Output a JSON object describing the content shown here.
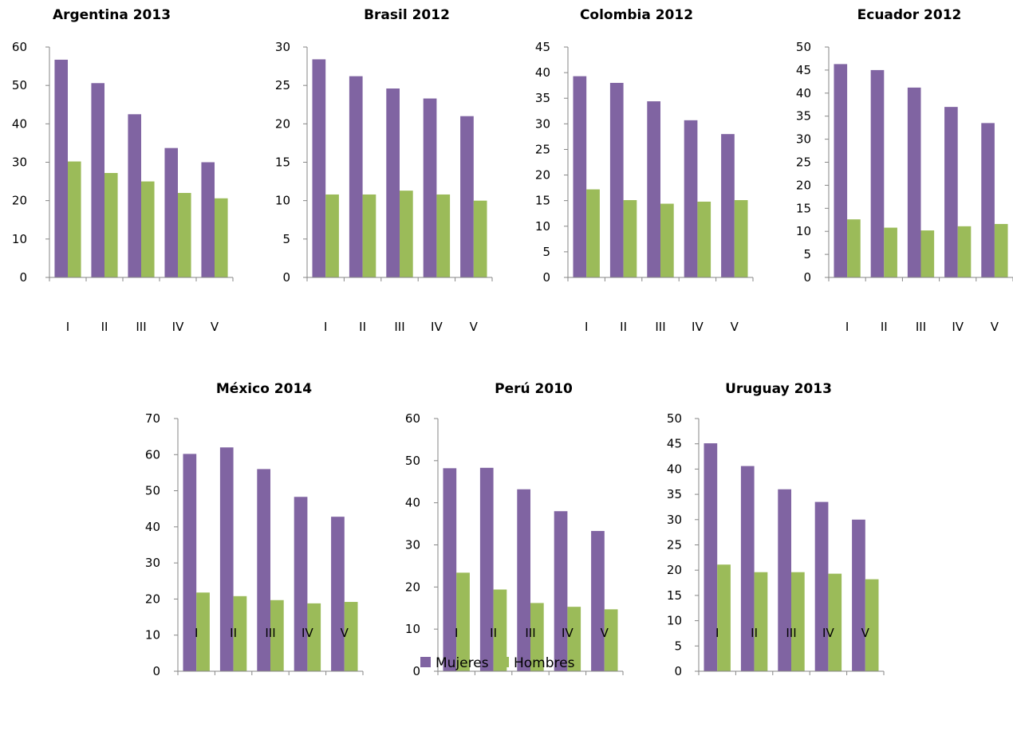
{
  "legend": [
    {
      "name": "Mujeres",
      "color": "#8064A2"
    },
    {
      "name": "Hombres",
      "color": "#9BBB59"
    }
  ],
  "chart_data": [
    {
      "type": "bar",
      "title": "Argentina 2013",
      "categories": [
        "I",
        "II",
        "III",
        "IV",
        "V"
      ],
      "ylim": [
        0,
        60
      ],
      "yticks": [
        0,
        10,
        20,
        30,
        40,
        50,
        60
      ],
      "series": [
        {
          "name": "Mujeres",
          "values": [
            56.7,
            50.6,
            42.5,
            33.7,
            30.0
          ]
        },
        {
          "name": "Hombres",
          "values": [
            30.2,
            27.2,
            25.0,
            22.0,
            20.6
          ]
        }
      ]
    },
    {
      "type": "bar",
      "title": "Brasil 2012",
      "categories": [
        "I",
        "II",
        "III",
        "IV",
        "V"
      ],
      "ylim": [
        0,
        30
      ],
      "yticks": [
        0,
        5,
        10,
        15,
        20,
        25,
        30
      ],
      "series": [
        {
          "name": "Mujeres",
          "values": [
            28.4,
            26.2,
            24.6,
            23.3,
            21.0
          ]
        },
        {
          "name": "Hombres",
          "values": [
            10.8,
            10.8,
            11.3,
            10.8,
            10.0
          ]
        }
      ]
    },
    {
      "type": "bar",
      "title": "Colombia 2012",
      "categories": [
        "I",
        "II",
        "III",
        "IV",
        "V"
      ],
      "ylim": [
        0,
        45
      ],
      "yticks": [
        0,
        5,
        10,
        15,
        20,
        25,
        30,
        35,
        40,
        45
      ],
      "series": [
        {
          "name": "Mujeres",
          "values": [
            39.3,
            38.0,
            34.4,
            30.7,
            28.0
          ]
        },
        {
          "name": "Hombres",
          "values": [
            17.2,
            15.1,
            14.4,
            14.8,
            15.1
          ]
        }
      ]
    },
    {
      "type": "bar",
      "title": "Ecuador 2012",
      "categories": [
        "I",
        "II",
        "III",
        "IV",
        "V"
      ],
      "ylim": [
        0,
        50
      ],
      "yticks": [
        0,
        5,
        10,
        15,
        20,
        25,
        30,
        35,
        40,
        45,
        50
      ],
      "series": [
        {
          "name": "Mujeres",
          "values": [
            46.3,
            45.0,
            41.2,
            37.0,
            33.5
          ]
        },
        {
          "name": "Hombres",
          "values": [
            12.6,
            10.8,
            10.2,
            11.1,
            11.6
          ]
        }
      ]
    },
    {
      "type": "bar",
      "title": "México 2014",
      "categories": [
        "I",
        "II",
        "III",
        "IV",
        "V"
      ],
      "ylim": [
        0,
        70
      ],
      "yticks": [
        0,
        10,
        20,
        30,
        40,
        50,
        60,
        70
      ],
      "series": [
        {
          "name": "Mujeres",
          "values": [
            60.2,
            62.0,
            56.0,
            48.3,
            42.8
          ]
        },
        {
          "name": "Hombres",
          "values": [
            21.8,
            20.8,
            19.7,
            18.8,
            19.2
          ]
        }
      ]
    },
    {
      "type": "bar",
      "title": "Perú 2010",
      "categories": [
        "I",
        "II",
        "III",
        "IV",
        "V"
      ],
      "ylim": [
        0,
        60
      ],
      "yticks": [
        0,
        10,
        20,
        30,
        40,
        50,
        60
      ],
      "series": [
        {
          "name": "Mujeres",
          "values": [
            48.2,
            48.3,
            43.2,
            38.0,
            33.3
          ]
        },
        {
          "name": "Hombres",
          "values": [
            23.4,
            19.4,
            16.2,
            15.3,
            14.7
          ]
        }
      ]
    },
    {
      "type": "bar",
      "title": "Uruguay 2013",
      "categories": [
        "I",
        "II",
        "III",
        "IV",
        "V"
      ],
      "ylim": [
        0,
        50
      ],
      "yticks": [
        0,
        5,
        10,
        15,
        20,
        25,
        30,
        35,
        40,
        45,
        50
      ],
      "series": [
        {
          "name": "Mujeres",
          "values": [
            45.1,
            40.6,
            36.0,
            33.5,
            30.0
          ]
        },
        {
          "name": "Hombres",
          "values": [
            21.1,
            19.6,
            19.6,
            19.3,
            18.2
          ]
        }
      ]
    }
  ]
}
